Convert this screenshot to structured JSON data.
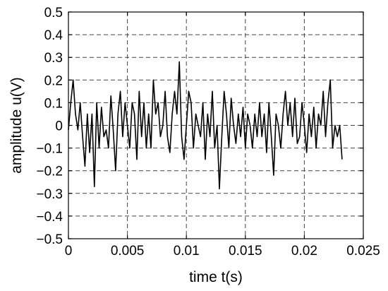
{
  "chart_data": {
    "type": "line",
    "title": "",
    "xlabel": "time t(s)",
    "ylabel": "amplitude u(V)",
    "xlim": [
      0,
      0.025
    ],
    "ylim": [
      -0.5,
      0.5
    ],
    "xticks": [
      0,
      0.005,
      0.01,
      0.015,
      0.02,
      0.025
    ],
    "xtick_labels": [
      "0",
      "0.005",
      "0.01",
      "0.015",
      "0.02",
      "0.025"
    ],
    "yticks": [
      -0.5,
      -0.4,
      -0.3,
      -0.2,
      -0.1,
      0,
      0.1,
      0.2,
      0.3,
      0.4,
      0.5
    ],
    "ytick_labels": [
      "−0.5",
      "−0.4",
      "−0.3",
      "−0.2",
      "−0.1",
      "0",
      "0.1",
      "0.2",
      "0.3",
      "0.4",
      "0.5"
    ],
    "grid": true,
    "series": [
      {
        "x": [
          0,
          0.0002,
          0.0004,
          0.0006,
          0.0008,
          0.001,
          0.0012,
          0.0014,
          0.0016,
          0.0018,
          0.002,
          0.0022,
          0.0024,
          0.0026,
          0.0028,
          0.003,
          0.0032,
          0.0034,
          0.0036,
          0.0038,
          0.004,
          0.0042,
          0.0044,
          0.0046,
          0.0048,
          0.005,
          0.0052,
          0.0054,
          0.0056,
          0.0058,
          0.006,
          0.0062,
          0.0064,
          0.0066,
          0.0068,
          0.007,
          0.0072,
          0.0074,
          0.0076,
          0.0078,
          0.008,
          0.0082,
          0.0084,
          0.0086,
          0.0088,
          0.009,
          0.0092,
          0.0094,
          0.0096,
          0.0098,
          0.01,
          0.0102,
          0.0104,
          0.0106,
          0.0108,
          0.011,
          0.0112,
          0.0114,
          0.0116,
          0.0118,
          0.012,
          0.0122,
          0.0124,
          0.0126,
          0.0128,
          0.013,
          0.0132,
          0.0134,
          0.0136,
          0.0138,
          0.014,
          0.0142,
          0.0144,
          0.0146,
          0.0148,
          0.015,
          0.0152,
          0.0154,
          0.0156,
          0.0158,
          0.016,
          0.0162,
          0.0164,
          0.0166,
          0.0168,
          0.017,
          0.0172,
          0.0174,
          0.0176,
          0.0178,
          0.018,
          0.0182,
          0.0184,
          0.0186,
          0.0188,
          0.019,
          0.0192,
          0.0194,
          0.0196,
          0.0198,
          0.02,
          0.0202,
          0.0204,
          0.0206,
          0.0208,
          0.021,
          0.0212,
          0.0214,
          0.0216,
          0.0218,
          0.022,
          0.0222,
          0.0224,
          0.0226,
          0.0228,
          0.023,
          0.0232
        ],
        "y": [
          -0.02,
          0.1,
          0.2,
          0.05,
          -0.02,
          0.1,
          -0.05,
          -0.18,
          0.05,
          -0.12,
          0.05,
          -0.27,
          0.1,
          -0.1,
          0.08,
          -0.05,
          -0.02,
          -0.1,
          0.13,
          -0.02,
          -0.2,
          0.05,
          0.15,
          -0.05,
          0.1,
          0.0,
          -0.1,
          0.1,
          0.05,
          -0.15,
          0.15,
          -0.05,
          0.1,
          -0.1,
          0.05,
          -0.1,
          0.2,
          0.05,
          0.1,
          -0.05,
          0.0,
          0.15,
          -0.05,
          -0.12,
          0.05,
          0.15,
          0.05,
          0.28,
          -0.05,
          -0.15,
          0.0,
          0.15,
          0.1,
          -0.1,
          0.05,
          0.0,
          -0.05,
          0.1,
          -0.15,
          0.05,
          -0.05,
          0.15,
          -0.1,
          0.0,
          -0.28,
          -0.05,
          0.15,
          0.05,
          -0.1,
          0.12,
          0.0,
          -0.08,
          0.05,
          -0.05,
          0.08,
          -0.1,
          0.05,
          0.0,
          -0.1,
          0.05,
          -0.05,
          0.1,
          -0.05,
          0.05,
          -0.12,
          0.1,
          -0.05,
          -0.22,
          0.05,
          0.0,
          -0.1,
          0.05,
          0.15,
          0.0,
          0.1,
          -0.05,
          0.12,
          -0.08,
          -0.05,
          0.1,
          0.0,
          -0.12,
          0.05,
          -0.05,
          0.08,
          -0.1,
          0.05,
          0.0,
          0.15,
          -0.05,
          0.1,
          0.2,
          -0.1,
          0.0,
          -0.05,
          0.0,
          -0.15
        ]
      }
    ]
  }
}
